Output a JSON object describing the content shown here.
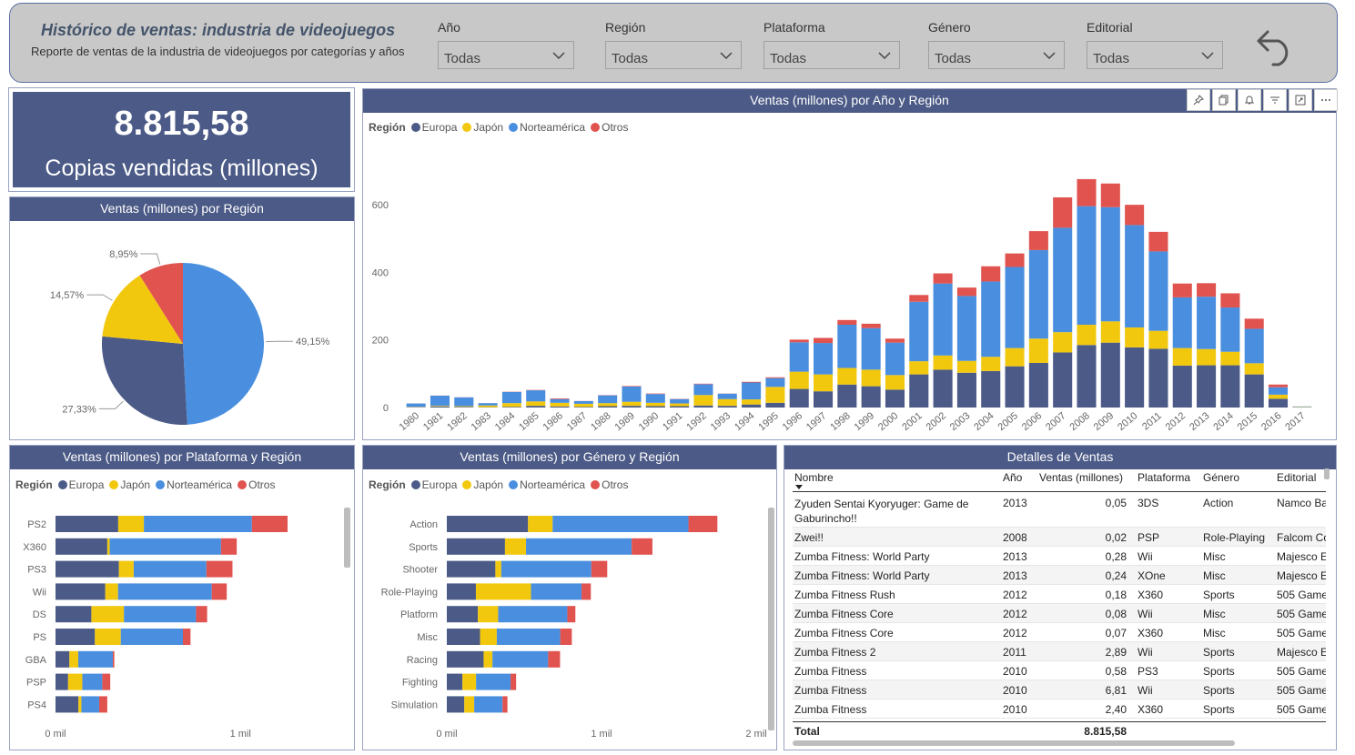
{
  "header": {
    "title": "Histórico de ventas: industria de videojuegos",
    "subtitle": "Reporte de ventas de la industria de videojuegos por categorías y años",
    "filters": [
      {
        "label": "Año",
        "value": "Todas"
      },
      {
        "label": "Región",
        "value": "Todas"
      },
      {
        "label": "Plataforma",
        "value": "Todas"
      },
      {
        "label": "Género",
        "value": "Todas"
      },
      {
        "label": "Editorial",
        "value": "Todas"
      }
    ],
    "back_icon": "undo-arrow-icon"
  },
  "kpi": {
    "value": "8.815,58",
    "label": "Copias vendidas (millones)"
  },
  "colors": {
    "Europa": "#4b5a86",
    "Japón": "#f2c80f",
    "Norteamérica": "#4a8fdf",
    "Otros": "#e0534f"
  },
  "legend": {
    "title": "Región",
    "items": [
      "Europa",
      "Japón",
      "Norteamérica",
      "Otros"
    ]
  },
  "pie": {
    "title": "Ventas (millones) por Región",
    "chart_data": {
      "type": "pie",
      "slices": [
        {
          "name": "Norteamérica",
          "value": 49.15,
          "label": "49,15%"
        },
        {
          "name": "Europa",
          "value": 27.33,
          "label": "27,33%"
        },
        {
          "name": "Japón",
          "value": 14.57,
          "label": "14,57%"
        },
        {
          "name": "Otros",
          "value": 8.95,
          "label": "8,95%"
        }
      ]
    }
  },
  "year_chart": {
    "title": "Ventas (millones) por Año y Región",
    "toolbar": [
      "pin-icon",
      "copy-icon",
      "bell-icon",
      "filter-icon",
      "focus-icon",
      "more-icon"
    ],
    "chart_data": {
      "type": "bar",
      "stacked": true,
      "ylim": [
        0,
        700
      ],
      "yticks": [
        0,
        200,
        400,
        600
      ],
      "categories": [
        "1980",
        "1981",
        "1982",
        "1983",
        "1984",
        "1985",
        "1986",
        "1987",
        "1988",
        "1989",
        "1990",
        "1991",
        "1992",
        "1993",
        "1994",
        "1995",
        "1996",
        "1997",
        "1998",
        "1999",
        "2000",
        "2001",
        "2002",
        "2003",
        "2004",
        "2005",
        "2006",
        "2007",
        "2008",
        "2009",
        "2010",
        "2011",
        "2012",
        "2013",
        "2014",
        "2015",
        "2016",
        "2017"
      ],
      "series": [
        {
          "name": "Europa",
          "values": [
            1,
            3,
            2,
            1,
            2,
            5,
            3,
            2,
            4,
            5,
            4,
            4,
            6,
            5,
            9,
            14,
            55,
            48,
            68,
            63,
            53,
            98,
            112,
            103,
            108,
            122,
            132,
            163,
            185,
            192,
            178,
            174,
            124,
            125,
            125,
            98,
            26,
            0.5
          ]
        },
        {
          "name": "Japón",
          "values": [
            1,
            2,
            2,
            5,
            11,
            13,
            11,
            9,
            9,
            12,
            10,
            8,
            31,
            20,
            15,
            47,
            51,
            50,
            49,
            49,
            43,
            39,
            42,
            35,
            42,
            54,
            72,
            60,
            60,
            63,
            59,
            53,
            52,
            48,
            40,
            33,
            12,
            1
          ]
        },
        {
          "name": "Norteamérica",
          "values": [
            10,
            30,
            26,
            7,
            33,
            33,
            11,
            8,
            23,
            45,
            26,
            13,
            32,
            16,
            50,
            26,
            87,
            93,
            128,
            123,
            96,
            176,
            213,
            192,
            223,
            240,
            262,
            309,
            351,
            338,
            303,
            235,
            150,
            155,
            131,
            102,
            22,
            1.5
          ]
        },
        {
          "name": "Otros",
          "values": [
            0.1,
            0.3,
            0.3,
            0.1,
            0.7,
            0.9,
            1.9,
            0.3,
            0.7,
            1.6,
            1.4,
            0.7,
            1.5,
            0.3,
            2,
            2.5,
            8,
            15,
            14,
            13,
            12,
            20,
            30,
            25,
            45,
            40,
            56,
            90,
            80,
            70,
            60,
            58,
            41,
            40,
            42,
            30,
            8,
            0.2
          ]
        }
      ]
    }
  },
  "platform_chart": {
    "title": "Ventas (millones) por Plataforma y Región",
    "chart_data": {
      "type": "bar",
      "orientation": "horizontal",
      "stacked": true,
      "xlim": [
        0,
        1250
      ],
      "xticks": [
        {
          "value": 0,
          "label": "0 mil"
        },
        {
          "value": 1000,
          "label": "1 mil"
        }
      ],
      "categories": [
        "PS2",
        "X360",
        "PS3",
        "Wii",
        "DS",
        "PS",
        "GBA",
        "PSP",
        "PS4"
      ],
      "series": [
        {
          "name": "Europa",
          "values": [
            339,
            280,
            343,
            269,
            194,
            213,
            75,
            68,
            124
          ]
        },
        {
          "name": "Japón",
          "values": [
            139,
            13,
            80,
            69,
            176,
            140,
            48,
            77,
            16
          ]
        },
        {
          "name": "Norteamérica",
          "values": [
            584,
            602,
            393,
            507,
            390,
            336,
            187,
            108,
            96
          ]
        },
        {
          "name": "Otros",
          "values": [
            193,
            85,
            141,
            81,
            60,
            41,
            8,
            43,
            44
          ]
        }
      ]
    }
  },
  "genre_chart": {
    "title": "Ventas (millones) por Género y Región",
    "chart_data": {
      "type": "bar",
      "orientation": "horizontal",
      "stacked": true,
      "xlim": [
        0,
        2000
      ],
      "xticks": [
        {
          "value": 0,
          "label": "0 mil"
        },
        {
          "value": 1000,
          "label": "1 mil"
        },
        {
          "value": 2000,
          "label": "2 mil"
        }
      ],
      "categories": [
        "Action",
        "Sports",
        "Shooter",
        "Role-Playing",
        "Platform",
        "Misc",
        "Racing",
        "Fighting",
        "Simulation"
      ],
      "series": [
        {
          "name": "Europa",
          "values": [
            525,
            376,
            314,
            188,
            201,
            215,
            238,
            101,
            113
          ]
        },
        {
          "name": "Japón",
          "values": [
            159,
            136,
            38,
            356,
            131,
            108,
            57,
            88,
            64
          ]
        },
        {
          "name": "Norteamérica",
          "values": [
            878,
            683,
            582,
            327,
            447,
            410,
            360,
            223,
            183
          ]
        },
        {
          "name": "Otros",
          "values": [
            187,
            134,
            103,
            60,
            52,
            75,
            77,
            36,
            32
          ]
        }
      ]
    }
  },
  "details": {
    "title": "Detalles de Ventas",
    "columns": [
      "Nombre",
      "Año",
      "Ventas (millones)",
      "Plataforma",
      "Género",
      "Editorial"
    ],
    "rows": [
      [
        "Zyuden Sentai Kyoryuger: Game de",
        "2013",
        "0,05",
        "3DS",
        "Action",
        "Namco Ba"
      ],
      [
        "Zwei!!",
        "2008",
        "0,02",
        "PSP",
        "Role-Playing",
        "Falcom Co"
      ],
      [
        "Zumba Fitness: World Party",
        "2013",
        "0,28",
        "Wii",
        "Misc",
        "Majesco E"
      ],
      [
        "Zumba Fitness: World Party",
        "2013",
        "0,24",
        "XOne",
        "Misc",
        "Majesco E"
      ],
      [
        "Zumba Fitness Rush",
        "2012",
        "0,18",
        "X360",
        "Sports",
        "505 Game"
      ],
      [
        "Zumba Fitness Core",
        "2012",
        "0,08",
        "Wii",
        "Misc",
        "505 Game"
      ],
      [
        "Zumba Fitness Core",
        "2012",
        "0,07",
        "X360",
        "Misc",
        "505 Game"
      ],
      [
        "Zumba Fitness 2",
        "2011",
        "2,89",
        "Wii",
        "Sports",
        "Majesco E"
      ],
      [
        "Zumba Fitness",
        "2010",
        "0,58",
        "PS3",
        "Sports",
        "505 Game"
      ],
      [
        "Zumba Fitness",
        "2010",
        "6,81",
        "Wii",
        "Sports",
        "505 Game"
      ],
      [
        "Zumba Fitness",
        "2010",
        "2,40",
        "X360",
        "Sports",
        "505 Game"
      ]
    ],
    "first_row_wrap": "Gaburincho!!",
    "total_label": "Total",
    "total_value": "8.815,58"
  }
}
